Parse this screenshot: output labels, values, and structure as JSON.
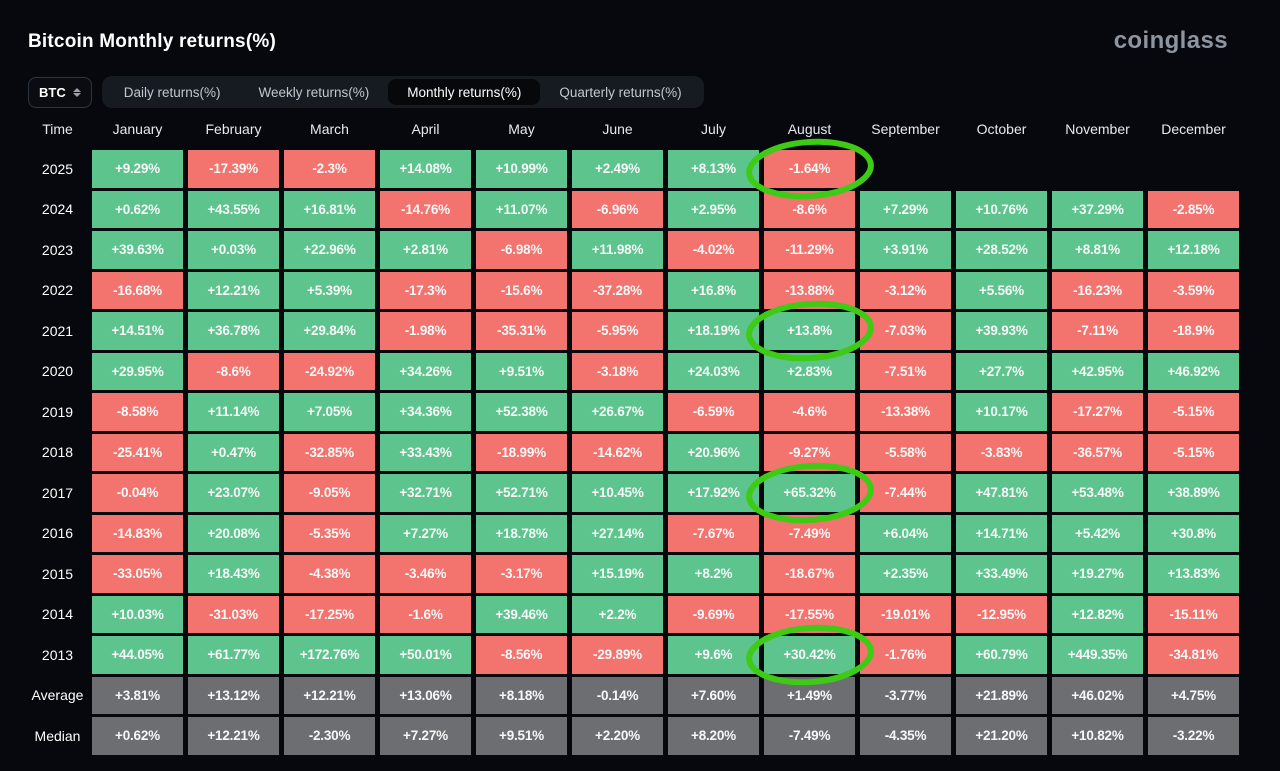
{
  "header": {
    "title": "Bitcoin Monthly returns(%)",
    "logo": "coinglass"
  },
  "controls": {
    "symbol_select": {
      "value": "BTC"
    },
    "tabs": [
      {
        "label": "Daily returns(%)",
        "active": false
      },
      {
        "label": "Weekly returns(%)",
        "active": false
      },
      {
        "label": "Monthly returns(%)",
        "active": true
      },
      {
        "label": "Quarterly returns(%)",
        "active": false
      }
    ]
  },
  "colors": {
    "positive": "#5EC48D",
    "negative": "#F3736E",
    "stat": "#6C6E71",
    "annotation": "#3DCB15",
    "background": "#06080d"
  },
  "chart_data": {
    "type": "heatmap",
    "title": "Bitcoin Monthly returns(%)",
    "columns": [
      "Time",
      "January",
      "February",
      "March",
      "April",
      "May",
      "June",
      "July",
      "August",
      "September",
      "October",
      "November",
      "December"
    ],
    "rows": [
      {
        "label": "2025",
        "kind": "year",
        "values": [
          "+9.29%",
          "-17.39%",
          "-2.3%",
          "+14.08%",
          "+10.99%",
          "+2.49%",
          "+8.13%",
          "-1.64%",
          "",
          "",
          "",
          ""
        ]
      },
      {
        "label": "2024",
        "kind": "year",
        "values": [
          "+0.62%",
          "+43.55%",
          "+16.81%",
          "-14.76%",
          "+11.07%",
          "-6.96%",
          "+2.95%",
          "-8.6%",
          "+7.29%",
          "+10.76%",
          "+37.29%",
          "-2.85%"
        ]
      },
      {
        "label": "2023",
        "kind": "year",
        "values": [
          "+39.63%",
          "+0.03%",
          "+22.96%",
          "+2.81%",
          "-6.98%",
          "+11.98%",
          "-4.02%",
          "-11.29%",
          "+3.91%",
          "+28.52%",
          "+8.81%",
          "+12.18%"
        ]
      },
      {
        "label": "2022",
        "kind": "year",
        "values": [
          "-16.68%",
          "+12.21%",
          "+5.39%",
          "-17.3%",
          "-15.6%",
          "-37.28%",
          "+16.8%",
          "-13.88%",
          "-3.12%",
          "+5.56%",
          "-16.23%",
          "-3.59%"
        ]
      },
      {
        "label": "2021",
        "kind": "year",
        "values": [
          "+14.51%",
          "+36.78%",
          "+29.84%",
          "-1.98%",
          "-35.31%",
          "-5.95%",
          "+18.19%",
          "+13.8%",
          "-7.03%",
          "+39.93%",
          "-7.11%",
          "-18.9%"
        ]
      },
      {
        "label": "2020",
        "kind": "year",
        "values": [
          "+29.95%",
          "-8.6%",
          "-24.92%",
          "+34.26%",
          "+9.51%",
          "-3.18%",
          "+24.03%",
          "+2.83%",
          "-7.51%",
          "+27.7%",
          "+42.95%",
          "+46.92%"
        ]
      },
      {
        "label": "2019",
        "kind": "year",
        "values": [
          "-8.58%",
          "+11.14%",
          "+7.05%",
          "+34.36%",
          "+52.38%",
          "+26.67%",
          "-6.59%",
          "-4.6%",
          "-13.38%",
          "+10.17%",
          "-17.27%",
          "-5.15%"
        ]
      },
      {
        "label": "2018",
        "kind": "year",
        "values": [
          "-25.41%",
          "+0.47%",
          "-32.85%",
          "+33.43%",
          "-18.99%",
          "-14.62%",
          "+20.96%",
          "-9.27%",
          "-5.58%",
          "-3.83%",
          "-36.57%",
          "-5.15%"
        ]
      },
      {
        "label": "2017",
        "kind": "year",
        "values": [
          "-0.04%",
          "+23.07%",
          "-9.05%",
          "+32.71%",
          "+52.71%",
          "+10.45%",
          "+17.92%",
          "+65.32%",
          "-7.44%",
          "+47.81%",
          "+53.48%",
          "+38.89%"
        ]
      },
      {
        "label": "2016",
        "kind": "year",
        "values": [
          "-14.83%",
          "+20.08%",
          "-5.35%",
          "+7.27%",
          "+18.78%",
          "+27.14%",
          "-7.67%",
          "-7.49%",
          "+6.04%",
          "+14.71%",
          "+5.42%",
          "+30.8%"
        ]
      },
      {
        "label": "2015",
        "kind": "year",
        "values": [
          "-33.05%",
          "+18.43%",
          "-4.38%",
          "-3.46%",
          "-3.17%",
          "+15.19%",
          "+8.2%",
          "-18.67%",
          "+2.35%",
          "+33.49%",
          "+19.27%",
          "+13.83%"
        ]
      },
      {
        "label": "2014",
        "kind": "year",
        "values": [
          "+10.03%",
          "-31.03%",
          "-17.25%",
          "-1.6%",
          "+39.46%",
          "+2.2%",
          "-9.69%",
          "-17.55%",
          "-19.01%",
          "-12.95%",
          "+12.82%",
          "-15.11%"
        ]
      },
      {
        "label": "2013",
        "kind": "year",
        "values": [
          "+44.05%",
          "+61.77%",
          "+172.76%",
          "+50.01%",
          "-8.56%",
          "-29.89%",
          "+9.6%",
          "+30.42%",
          "-1.76%",
          "+60.79%",
          "+449.35%",
          "-34.81%"
        ]
      },
      {
        "label": "Average",
        "kind": "stat",
        "values": [
          "+3.81%",
          "+13.12%",
          "+12.21%",
          "+13.06%",
          "+8.18%",
          "-0.14%",
          "+7.60%",
          "+1.49%",
          "-3.77%",
          "+21.89%",
          "+46.02%",
          "+4.75%"
        ]
      },
      {
        "label": "Median",
        "kind": "stat",
        "values": [
          "+0.62%",
          "+12.21%",
          "-2.30%",
          "+7.27%",
          "+9.51%",
          "+2.20%",
          "+8.20%",
          "-7.49%",
          "-4.35%",
          "+21.20%",
          "+10.82%",
          "-3.22%"
        ]
      }
    ],
    "annotations": {
      "circled": [
        {
          "row": "2025",
          "col": "August"
        },
        {
          "row": "2021",
          "col": "August"
        },
        {
          "row": "2017",
          "col": "August"
        },
        {
          "row": "2013",
          "col": "August"
        }
      ]
    }
  }
}
